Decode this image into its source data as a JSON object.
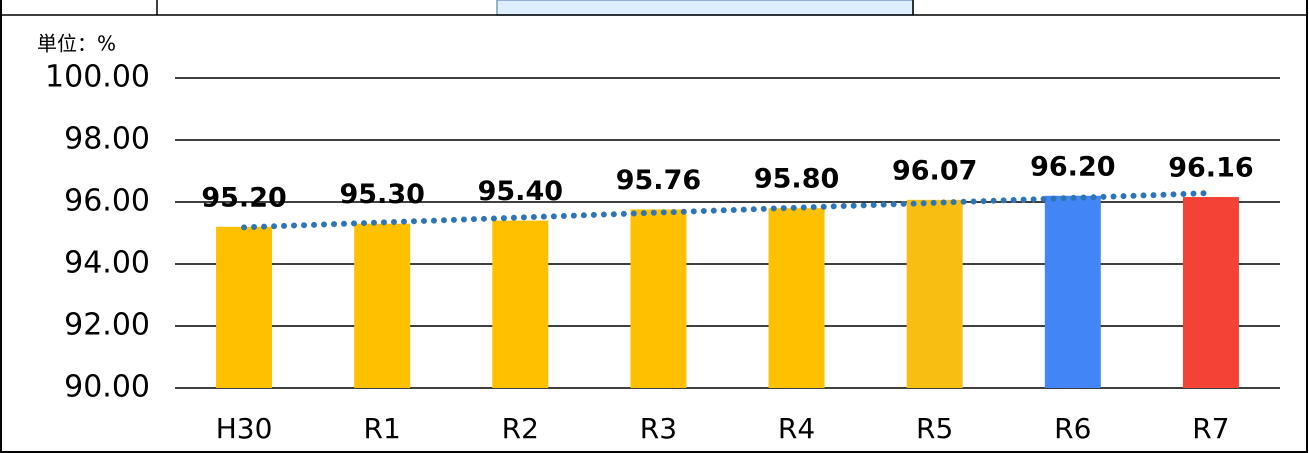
{
  "chart_data": {
    "type": "bar",
    "unit_label": "単位：%",
    "categories": [
      "H30",
      "R1",
      "R2",
      "R3",
      "R4",
      "R5",
      "R6",
      "R7"
    ],
    "values": [
      95.2,
      95.3,
      95.4,
      95.76,
      95.8,
      96.07,
      96.2,
      96.16
    ],
    "value_labels": [
      "95.20",
      "95.30",
      "95.40",
      "95.76",
      "95.80",
      "96.07",
      "96.20",
      "96.16"
    ],
    "colors": [
      "#ffc000",
      "#ffc000",
      "#ffc000",
      "#ffc000",
      "#ffc000",
      "#f9be12",
      "#4285f4",
      "#f44336"
    ],
    "ylim": [
      90,
      100
    ],
    "yticks": [
      {
        "value": 90,
        "label": "90.00"
      },
      {
        "value": 92,
        "label": "92.00"
      },
      {
        "value": 94,
        "label": "94.00"
      },
      {
        "value": 96,
        "label": "96.00"
      },
      {
        "value": 98,
        "label": "98.00"
      },
      {
        "value": 100,
        "label": "100.00"
      }
    ],
    "grid": true,
    "trendline": {
      "color": "#2e75b6",
      "style": "dotted"
    }
  }
}
